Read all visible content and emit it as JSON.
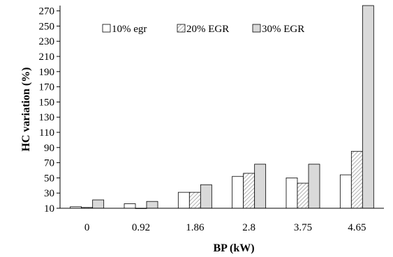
{
  "chart_data": {
    "type": "bar",
    "title": "",
    "xlabel": "BP (kW)",
    "ylabel": "HC  variation (%)",
    "categories": [
      "0",
      "0.92",
      "1.86",
      "2.8",
      "3.75",
      "4.65"
    ],
    "series": [
      {
        "name": "10% egr",
        "values": [
          12,
          16,
          31,
          52,
          50,
          54
        ],
        "fill": "#ffffff",
        "pattern": "none"
      },
      {
        "name": "20% EGR",
        "values": [
          11,
          10,
          31,
          56,
          43,
          85
        ],
        "fill": "#ffffff",
        "pattern": "diagonal-hatch"
      },
      {
        "name": "30% EGR",
        "values": [
          21,
          19,
          41,
          68,
          68,
          277
        ],
        "fill": "#d9d9d9",
        "pattern": "none"
      }
    ],
    "ylim": [
      10,
      277
    ],
    "yticks": [
      10,
      30,
      50,
      70,
      90,
      110,
      130,
      150,
      170,
      190,
      210,
      230,
      250,
      270
    ],
    "grid": false,
    "legend_position": "top-left"
  }
}
